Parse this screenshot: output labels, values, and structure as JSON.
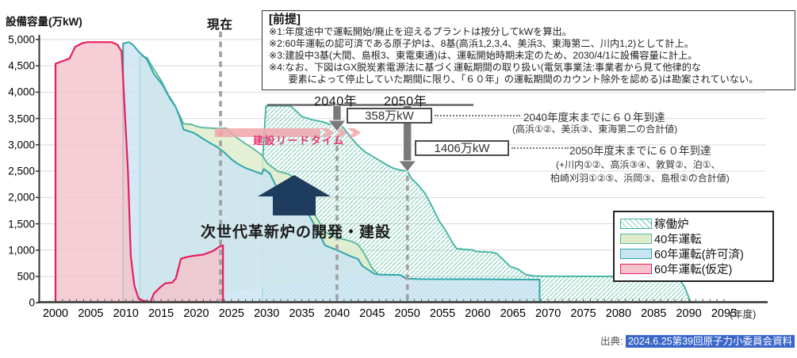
{
  "y_axis": {
    "title": "設備容量(万kW)",
    "tick_labels": [
      "0",
      "500",
      "1,000",
      "1,500",
      "2,000",
      "2,500",
      "3,000",
      "3,500",
      "4,000",
      "4,500",
      "5,000"
    ],
    "tick_values": [
      0,
      500,
      1000,
      1500,
      2000,
      2500,
      3000,
      3500,
      4000,
      4500,
      5000
    ]
  },
  "x_axis": {
    "tick_values": [
      2000,
      2005,
      2010,
      2015,
      2020,
      2025,
      2030,
      2035,
      2040,
      2045,
      2050,
      2055,
      2060,
      2065,
      2070,
      2075,
      2080,
      2085,
      2090,
      2095
    ],
    "unit_label": "(年度)"
  },
  "current_line": {
    "label": "現在",
    "year": 2023.45
  },
  "premise_box": {
    "title": "[前提]",
    "lines": [
      "※1:年度途中で運転開始/廃止を迎えるプラントは按分してkWを算出。",
      "※2:60年運転の認可済である原子炉は、8基(高浜1,2,3,4、美浜3、東海第二、川内1,2)として計上。",
      "※3:建設中3基(大間、島根3、東電東通)は、運転開始時期未定のため、2030/4/1に設備容量に計上。",
      "※4:なお、下図はGX脱炭素電源法に基づく運転期間の取り扱い(電気事業法:事業者から見て他律的な",
      "　　要素によって停止していた期間に限り、「６０年」の運転期間のカウント除外を認める)は勘案されていない。"
    ]
  },
  "milestones": {
    "label_2040": "2040年",
    "label_2050": "2050年",
    "box_2040": "358万kW",
    "box_2050": "1406万kW",
    "note_2040_line1": "2040年度末までに６０年到達",
    "note_2040_line2": "(高浜①②、美浜③、東海第二の合計値)",
    "note_2050_line1": "2050年度末までに６０年到達",
    "note_2050_line2": "(+川内①②、高浜③④、敦賀②、泊①、",
    "note_2050_line3": "柏崎刈羽①②⑤、浜岡③、島根②の合計値)"
  },
  "construction_leadtime": {
    "label": "建設リードタイム"
  },
  "nextgen": {
    "label": "次世代革新炉の開発・建設"
  },
  "legend": {
    "items": [
      {
        "label": "稼働炉",
        "style": "hatch"
      },
      {
        "label": "40年運転",
        "style": "green"
      },
      {
        "label": "60年運転(許可済)",
        "style": "blue"
      },
      {
        "label": "60年運転(仮定)",
        "style": "red"
      }
    ]
  },
  "source": {
    "prefix": "出典:",
    "highlighted": "2024.6.25第39回原子力小委員会資料"
  },
  "colors": {
    "pink_fill": "#f4c2cb",
    "red_line": "#e4205f",
    "blue_fill": "#c9e4f2",
    "teal_line": "#2fa6ab",
    "green_fill": "#dfeccb",
    "green_line": "#57b89b",
    "hatch_stripe": "#8fd2c0",
    "hatch_line": "#3eb2a2",
    "grid": "#d9d9d9",
    "axis": "#333333",
    "dashed_guide": "#a0a0a0",
    "navy_arrow": "#1d3c5e",
    "leadtime_band": "#f0a4a9",
    "leadtime_text": "#e8336d",
    "gray_arrow": "#7a7a7a",
    "source_highlight": "#3b66c9"
  },
  "chart_data": {
    "type": "area",
    "title": "",
    "ylabel": "設備容量(万kW)",
    "xlabel": "(年度)",
    "xlim": [
      2000,
      2095
    ],
    "ylim": [
      0,
      5000
    ],
    "grid": true,
    "legend_position": "bottom-right",
    "series": [
      {
        "name": "稼働炉",
        "style": "hatch",
        "points": [
          [
            2029.4,
            0
          ],
          [
            2029.4,
            2650
          ],
          [
            2029.9,
            3740
          ],
          [
            2033.4,
            3740
          ],
          [
            2035,
            3535
          ],
          [
            2036.5,
            3475
          ],
          [
            2038,
            3435
          ],
          [
            2039.3,
            3375
          ],
          [
            2040.2,
            3400
          ],
          [
            2041,
            3310
          ],
          [
            2042,
            3135
          ],
          [
            2043,
            2985
          ],
          [
            2044,
            2865
          ],
          [
            2045,
            2785
          ],
          [
            2046,
            2705
          ],
          [
            2047,
            2625
          ],
          [
            2048,
            2555
          ],
          [
            2049,
            2520
          ],
          [
            2050,
            2500
          ],
          [
            2050.6,
            2360
          ],
          [
            2051.5,
            2240
          ],
          [
            2052.5,
            2080
          ],
          [
            2053.5,
            1830
          ],
          [
            2054.5,
            1560
          ],
          [
            2055.5,
            1360
          ],
          [
            2056.5,
            1120
          ],
          [
            2057,
            1030
          ],
          [
            2058,
            1015
          ],
          [
            2059.3,
            1005
          ],
          [
            2059.7,
            975
          ],
          [
            2062,
            960
          ],
          [
            2062.7,
            935
          ],
          [
            2063.5,
            835
          ],
          [
            2064.6,
            690
          ],
          [
            2065.8,
            635
          ],
          [
            2066.8,
            535
          ],
          [
            2068,
            510
          ],
          [
            2069.2,
            505
          ],
          [
            2088.4,
            498
          ],
          [
            2089.4,
            300
          ],
          [
            2090.3,
            0
          ]
        ]
      },
      {
        "name": "40年運転",
        "style": "green",
        "points": [
          [
            2012,
            0
          ],
          [
            2012,
            4690
          ],
          [
            2013,
            4655
          ],
          [
            2014,
            4430
          ],
          [
            2015,
            4225
          ],
          [
            2016,
            3955
          ],
          [
            2017,
            3740
          ],
          [
            2017.6,
            3565
          ],
          [
            2018.2,
            3400
          ],
          [
            2019.4,
            3385
          ],
          [
            2020,
            3350
          ],
          [
            2021,
            3325
          ],
          [
            2023,
            3310
          ],
          [
            2024.3,
            3315
          ],
          [
            2025.7,
            3140
          ],
          [
            2026.8,
            3040
          ],
          [
            2027.9,
            2945
          ],
          [
            2029.3,
            2810
          ],
          [
            2030.1,
            2645
          ],
          [
            2031.6,
            2495
          ],
          [
            2033.1,
            2445
          ],
          [
            2034.2,
            2345
          ],
          [
            2035,
            2230
          ],
          [
            2036.1,
            1845
          ],
          [
            2037.2,
            1590
          ],
          [
            2038.3,
            1345
          ],
          [
            2039.8,
            1240
          ],
          [
            2042.1,
            1165
          ],
          [
            2043,
            1105
          ],
          [
            2044,
            905
          ],
          [
            2045,
            655
          ],
          [
            2045.8,
            550
          ]
        ]
      },
      {
        "name": "60年運転(許可済)",
        "style": "blue",
        "points": [
          [
            2009.6,
            0
          ],
          [
            2009.6,
            4920
          ],
          [
            2010.4,
            4950
          ],
          [
            2011,
            4900
          ],
          [
            2011.8,
            4770
          ],
          [
            2013,
            4620
          ],
          [
            2014,
            4340
          ],
          [
            2015.2,
            4140
          ],
          [
            2016.3,
            3870
          ],
          [
            2017.1,
            3715
          ],
          [
            2017.6,
            3540
          ],
          [
            2018.2,
            3290
          ],
          [
            2019.4,
            3240
          ],
          [
            2020,
            3200
          ],
          [
            2021,
            3110
          ],
          [
            2022,
            3030
          ],
          [
            2023,
            2955
          ],
          [
            2024,
            2855
          ],
          [
            2025,
            2725
          ],
          [
            2026,
            2630
          ],
          [
            2027,
            2560
          ],
          [
            2028,
            2510
          ],
          [
            2029.3,
            2445
          ],
          [
            2029.6,
            2540
          ],
          [
            2030.5,
            2450
          ],
          [
            2031.6,
            2140
          ],
          [
            2033.8,
            1940
          ],
          [
            2036,
            1670
          ],
          [
            2037,
            1430
          ],
          [
            2038.3,
            1090
          ],
          [
            2040,
            1000
          ],
          [
            2042,
            880
          ],
          [
            2043,
            830
          ],
          [
            2043.6,
            700
          ],
          [
            2044.5,
            620
          ],
          [
            2045.3,
            550
          ],
          [
            2046,
            535
          ],
          [
            2049,
            530
          ],
          [
            2049.8,
            460
          ],
          [
            2052,
            450
          ],
          [
            2060,
            448
          ],
          [
            2068.8,
            440
          ],
          [
            2068.8,
            0
          ]
        ]
      },
      {
        "name": "60年運転(仮定)",
        "style": "red",
        "points": [
          [
            2000,
            0
          ],
          [
            2000,
            4540
          ],
          [
            2001,
            4590
          ],
          [
            2002,
            4640
          ],
          [
            2002.8,
            4860
          ],
          [
            2003.8,
            4930
          ],
          [
            2004.5,
            4950
          ],
          [
            2008,
            4950
          ],
          [
            2008.8,
            4900
          ],
          [
            2009.4,
            4770
          ],
          [
            2010.3,
            2490
          ],
          [
            2010.7,
            890
          ],
          [
            2011.2,
            330
          ],
          [
            2011.8,
            80
          ],
          [
            2012.6,
            35
          ],
          [
            2013.5,
            15
          ],
          [
            2014,
            180
          ],
          [
            2015,
            310
          ],
          [
            2015.6,
            370
          ],
          [
            2016.6,
            385
          ],
          [
            2017.1,
            460
          ],
          [
            2017.8,
            835
          ],
          [
            2018.4,
            860
          ],
          [
            2019.5,
            890
          ],
          [
            2021,
            915
          ],
          [
            2022.4,
            985
          ],
          [
            2023.4,
            1075
          ],
          [
            2023.8,
            1090
          ],
          [
            2023.8,
            0
          ]
        ]
      }
    ]
  }
}
